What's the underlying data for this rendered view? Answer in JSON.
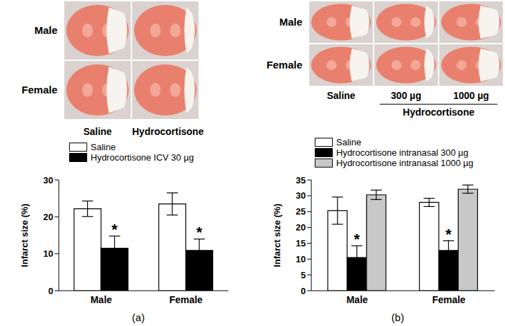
{
  "chart_data": [
    {
      "panel": "(a)",
      "type": "bar",
      "ylabel": "Infarct size (%)",
      "categories": [
        "Male",
        "Female"
      ],
      "series": [
        {
          "name": "Saline",
          "color": "#ffffff",
          "values": [
            22.2,
            23.5
          ],
          "errors": [
            2.1,
            3.0
          ],
          "annotations": [
            null,
            null
          ]
        },
        {
          "name": "Hydrocortisone ICV 30 µg",
          "color": "#000000",
          "values": [
            11.5,
            10.9
          ],
          "errors": [
            3.3,
            3.1
          ],
          "annotations": [
            "*",
            "*"
          ]
        }
      ],
      "ylim": [
        0,
        30
      ],
      "yticks": [
        0,
        10,
        20,
        30
      ],
      "legend": "top-left"
    },
    {
      "panel": "(b)",
      "type": "bar",
      "ylabel": "Infarct size (%)",
      "categories": [
        "Male",
        "Female"
      ],
      "series": [
        {
          "name": "Saline",
          "color": "#ffffff",
          "values": [
            25.3,
            27.9
          ],
          "errors": [
            4.3,
            1.3
          ],
          "annotations": [
            null,
            null
          ]
        },
        {
          "name": "Hydrocortisone intranasal 300 µg",
          "color": "#000000",
          "values": [
            10.5,
            12.7
          ],
          "errors": [
            3.7,
            3.1
          ],
          "annotations": [
            "*",
            "*"
          ]
        },
        {
          "name": "Hydrocortisone intranasal 1000 µg",
          "color": "#c8c8c8",
          "values": [
            30.3,
            32.1
          ],
          "errors": [
            1.5,
            1.3
          ],
          "annotations": [
            null,
            null
          ]
        }
      ],
      "ylim": [
        0,
        35
      ],
      "yticks": [
        0,
        5,
        10,
        15,
        20,
        25,
        30,
        35
      ],
      "legend": "top-left"
    }
  ],
  "photos": [
    {
      "rows": [
        "Male",
        "Female"
      ],
      "columns": [
        "Saline",
        "Hydrocortisone"
      ]
    },
    {
      "rows": [
        "Male",
        "Female"
      ],
      "columns": [
        "Saline",
        "300 µg",
        "1000 µg"
      ],
      "column_group": {
        "label": "Hydrocortisone",
        "columns": [
          "300 µg",
          "1000 µg"
        ]
      }
    }
  ]
}
